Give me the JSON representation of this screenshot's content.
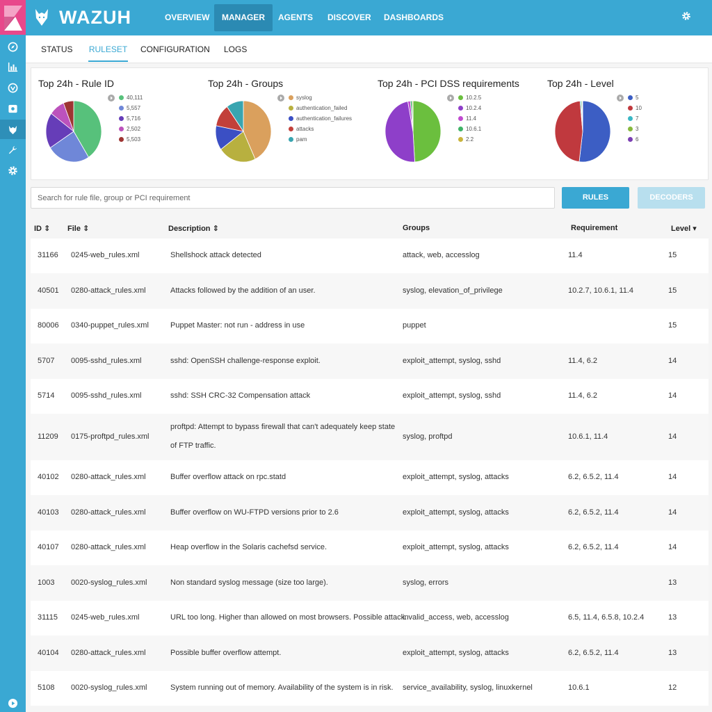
{
  "app": {
    "brand": "WAZUH"
  },
  "nav": {
    "items": [
      {
        "label": "OVERVIEW",
        "active": false
      },
      {
        "label": "MANAGER",
        "active": true
      },
      {
        "label": "AGENTS",
        "active": false
      },
      {
        "label": "DISCOVER",
        "active": false
      },
      {
        "label": "DASHBOARDS",
        "active": false
      }
    ]
  },
  "subtabs": [
    {
      "label": "STATUS",
      "active": false
    },
    {
      "label": "RULESET",
      "active": true
    },
    {
      "label": "CONFIGURATION",
      "active": false
    },
    {
      "label": "LOGS",
      "active": false
    }
  ],
  "charts": [
    {
      "title": "Top 24h - Rule ID",
      "legend": [
        {
          "label": "40,111",
          "color": "#57c17b"
        },
        {
          "label": "5,557",
          "color": "#6f87d8"
        },
        {
          "label": "5,716",
          "color": "#663db8"
        },
        {
          "label": "2,502",
          "color": "#bc52bc"
        },
        {
          "label": "5,503",
          "color": "#9e3533"
        }
      ],
      "slices": [
        0.41,
        0.25,
        0.19,
        0.09,
        0.06
      ]
    },
    {
      "title": "Top 24h - Groups",
      "legend": [
        {
          "label": "syslog",
          "color": "#daa05d"
        },
        {
          "label": "authentication_failed",
          "color": "#b8b03f"
        },
        {
          "label": "authentication_failures",
          "color": "#3b4fc4"
        },
        {
          "label": "attacks",
          "color": "#c2403a"
        },
        {
          "label": "pam",
          "color": "#39a5b0"
        }
      ],
      "slices": [
        0.43,
        0.22,
        0.13,
        0.12,
        0.1
      ]
    },
    {
      "title": "Top 24h - PCI DSS requirements",
      "legend": [
        {
          "label": "10.2.5",
          "color": "#6bbf3e"
        },
        {
          "label": "10.2.4",
          "color": "#8e3fc9"
        },
        {
          "label": "11.4",
          "color": "#c04bd0"
        },
        {
          "label": "10.6.1",
          "color": "#3fb365"
        },
        {
          "label": "2.2",
          "color": "#c9b43c"
        }
      ],
      "slices": [
        0.49,
        0.48,
        0.015,
        0.01,
        0.005
      ]
    },
    {
      "title": "Top 24h - Level",
      "legend": [
        {
          "label": "5",
          "color": "#3c5ec4"
        },
        {
          "label": "10",
          "color": "#c0393e"
        },
        {
          "label": "7",
          "color": "#3ab7c4"
        },
        {
          "label": "3",
          "color": "#86b83d"
        },
        {
          "label": "6",
          "color": "#7b3fb3"
        }
      ],
      "slices": [
        0.52,
        0.465,
        0.007,
        0.005,
        0.003
      ]
    }
  ],
  "search": {
    "placeholder": "Search for rule file, group or PCI requirement"
  },
  "buttons": {
    "rules": "RULES",
    "decoders": "DECODERS"
  },
  "table": {
    "headers": {
      "id": "ID",
      "file": "File",
      "description": "Description",
      "groups": "Groups",
      "requirement": "Requirement",
      "level": "Level"
    },
    "rows": [
      {
        "id": "31166",
        "file": "0245-web_rules.xml",
        "description": "Shellshock attack detected",
        "groups": "attack, web, accesslog",
        "requirement": "11.4",
        "level": "15"
      },
      {
        "id": "40501",
        "file": "0280-attack_rules.xml",
        "description": "Attacks followed by the addition of an user.",
        "groups": "syslog, elevation_of_privilege",
        "requirement": "10.2.7, 10.6.1, 11.4",
        "level": "15"
      },
      {
        "id": "80006",
        "file": "0340-puppet_rules.xml",
        "description": "Puppet Master: not run - address in use",
        "groups": "puppet",
        "requirement": "",
        "level": "15"
      },
      {
        "id": "5707",
        "file": "0095-sshd_rules.xml",
        "description": "sshd: OpenSSH challenge-response exploit.",
        "groups": "exploit_attempt, syslog, sshd",
        "requirement": "11.4, 6.2",
        "level": "14"
      },
      {
        "id": "5714",
        "file": "0095-sshd_rules.xml",
        "description": "sshd: SSH CRC-32 Compensation attack",
        "groups": "exploit_attempt, syslog, sshd",
        "requirement": "11.4, 6.2",
        "level": "14"
      },
      {
        "id": "11209",
        "file": "0175-proftpd_rules.xml",
        "description": "proftpd: Attempt to bypass firewall that can't adequately keep state of FTP traffic.",
        "groups": "syslog, proftpd",
        "requirement": "10.6.1, 11.4",
        "level": "14"
      },
      {
        "id": "40102",
        "file": "0280-attack_rules.xml",
        "description": "Buffer overflow attack on rpc.statd",
        "groups": "exploit_attempt, syslog, attacks",
        "requirement": "6.2, 6.5.2, 11.4",
        "level": "14"
      },
      {
        "id": "40103",
        "file": "0280-attack_rules.xml",
        "description": "Buffer overflow on WU-FTPD versions prior to 2.6",
        "groups": "exploit_attempt, syslog, attacks",
        "requirement": "6.2, 6.5.2, 11.4",
        "level": "14"
      },
      {
        "id": "40107",
        "file": "0280-attack_rules.xml",
        "description": "Heap overflow in the Solaris cachefsd service.",
        "groups": "exploit_attempt, syslog, attacks",
        "requirement": "6.2, 6.5.2, 11.4",
        "level": "14"
      },
      {
        "id": "1003",
        "file": "0020-syslog_rules.xml",
        "description": "Non standard syslog message (size too large).",
        "groups": "syslog, errors",
        "requirement": "",
        "level": "13"
      },
      {
        "id": "31115",
        "file": "0245-web_rules.xml",
        "description": "URL too long. Higher than allowed on most browsers. Possible attack.",
        "groups": "invalid_access, web, accesslog",
        "requirement": "6.5, 11.4, 6.5.8, 10.2.4",
        "level": "13"
      },
      {
        "id": "40104",
        "file": "0280-attack_rules.xml",
        "description": "Possible buffer overflow attempt.",
        "groups": "exploit_attempt, syslog, attacks",
        "requirement": "6.2, 6.5.2, 11.4",
        "level": "13"
      },
      {
        "id": "5108",
        "file": "0020-syslog_rules.xml",
        "description": "System running out of memory. Availability of the system is in risk.",
        "groups": "service_availability, syslog, linuxkernel",
        "requirement": "10.6.1",
        "level": "12"
      }
    ]
  },
  "icons": {
    "sidebar": [
      "kibana-logo-icon",
      "compass-icon",
      "bar-chart-icon",
      "shield-icon",
      "dashboard-icon",
      "wazuh-icon",
      "wrench-icon",
      "gear-icon",
      "play-icon"
    ],
    "top": [
      "wolf-icon",
      "settings-gear-icon"
    ]
  }
}
